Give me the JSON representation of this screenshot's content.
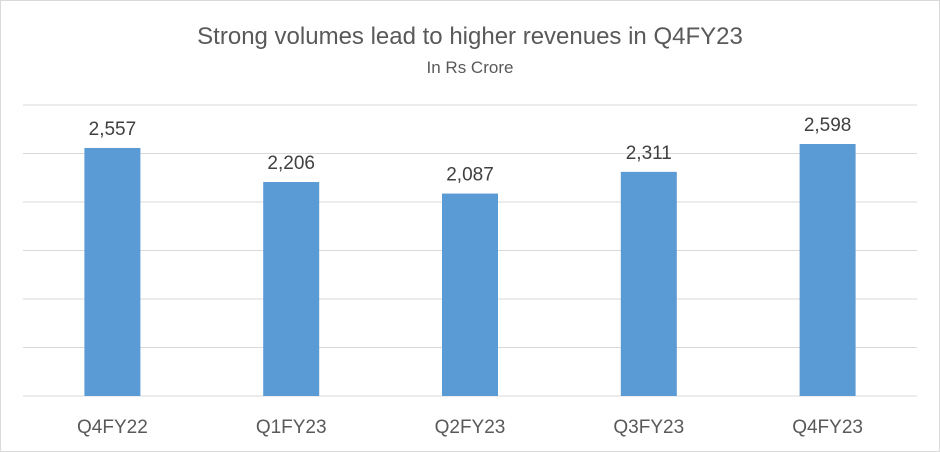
{
  "chart_data": {
    "type": "bar",
    "title": "Strong volumes lead to higher revenues in Q4FY23",
    "subtitle": "In Rs Crore",
    "categories": [
      "Q4FY22",
      "Q1FY23",
      "Q2FY23",
      "Q3FY23",
      "Q4FY23"
    ],
    "values": [
      2557,
      2206,
      2087,
      2311,
      2598
    ],
    "value_labels": [
      "2,557",
      "2,206",
      "2,087",
      "2,311",
      "2,598"
    ],
    "ylim": [
      0,
      3000
    ],
    "y_gridline_step": 500,
    "y_axis_labels_shown": false,
    "grid": true,
    "legend": "none",
    "colors": {
      "bar": "#5b9bd5",
      "grid": "#d9d9d9",
      "text": "#595959"
    }
  }
}
